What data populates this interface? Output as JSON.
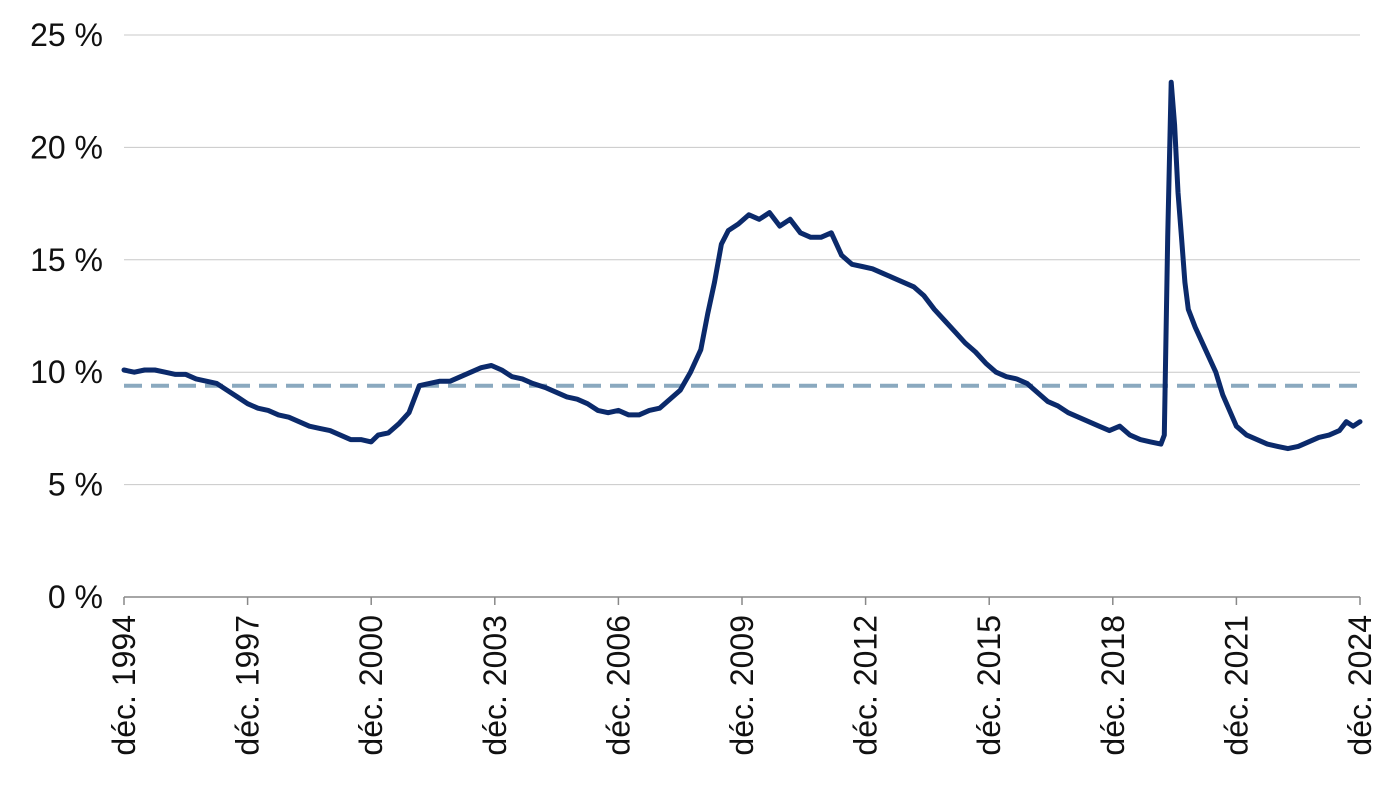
{
  "chart_data": {
    "type": "line",
    "title": "",
    "xlabel": "",
    "ylabel": "",
    "ylim": [
      0,
      25
    ],
    "y_ticks": [
      "0 %",
      "5 %",
      "10 %",
      "15 %",
      "20 %",
      "25 %"
    ],
    "x_ticks": [
      "déc. 1994",
      "déc. 1997",
      "déc. 2000",
      "déc. 2003",
      "déc. 2006",
      "déc. 2009",
      "déc. 2012",
      "déc. 2015",
      "déc. 2018",
      "déc. 2021",
      "déc. 2024"
    ],
    "x_range": [
      "1994-12",
      "2024-12"
    ],
    "grid": "horizontal",
    "legend": "none",
    "colors": {
      "series": "#0b2a6b",
      "reference": "#8aa9bf",
      "grid": "#c8c8c8",
      "axis": "#888888"
    },
    "reference_line": {
      "value": 9.4,
      "style": "dashed"
    },
    "series": [
      {
        "values": [
          [
            "1994-12",
            10.1
          ],
          [
            "1995-03",
            10.0
          ],
          [
            "1995-06",
            10.1
          ],
          [
            "1995-09",
            10.1
          ],
          [
            "1995-12",
            10.0
          ],
          [
            "1996-03",
            9.9
          ],
          [
            "1996-06",
            9.9
          ],
          [
            "1996-09",
            9.7
          ],
          [
            "1996-12",
            9.6
          ],
          [
            "1997-03",
            9.5
          ],
          [
            "1997-06",
            9.2
          ],
          [
            "1997-09",
            8.9
          ],
          [
            "1997-12",
            8.6
          ],
          [
            "1998-03",
            8.4
          ],
          [
            "1998-06",
            8.3
          ],
          [
            "1998-09",
            8.1
          ],
          [
            "1998-12",
            8.0
          ],
          [
            "1999-03",
            7.8
          ],
          [
            "1999-06",
            7.6
          ],
          [
            "1999-09",
            7.5
          ],
          [
            "1999-12",
            7.4
          ],
          [
            "2000-03",
            7.2
          ],
          [
            "2000-06",
            7.0
          ],
          [
            "2000-09",
            7.0
          ],
          [
            "2000-12",
            6.9
          ],
          [
            "2001-02",
            7.2
          ],
          [
            "2001-05",
            7.3
          ],
          [
            "2001-08",
            7.7
          ],
          [
            "2001-11",
            8.2
          ],
          [
            "2002-02",
            9.4
          ],
          [
            "2002-05",
            9.5
          ],
          [
            "2002-08",
            9.6
          ],
          [
            "2002-11",
            9.6
          ],
          [
            "2003-02",
            9.8
          ],
          [
            "2003-05",
            10.0
          ],
          [
            "2003-08",
            10.2
          ],
          [
            "2003-11",
            10.3
          ],
          [
            "2004-02",
            10.1
          ],
          [
            "2004-05",
            9.8
          ],
          [
            "2004-08",
            9.7
          ],
          [
            "2004-11",
            9.5
          ],
          [
            "2005-03",
            9.3
          ],
          [
            "2005-06",
            9.1
          ],
          [
            "2005-09",
            8.9
          ],
          [
            "2005-12",
            8.8
          ],
          [
            "2006-03",
            8.6
          ],
          [
            "2006-06",
            8.3
          ],
          [
            "2006-09",
            8.2
          ],
          [
            "2006-12",
            8.3
          ],
          [
            "2007-03",
            8.1
          ],
          [
            "2007-06",
            8.1
          ],
          [
            "2007-09",
            8.3
          ],
          [
            "2007-12",
            8.4
          ],
          [
            "2008-03",
            8.8
          ],
          [
            "2008-06",
            9.2
          ],
          [
            "2008-09",
            10.0
          ],
          [
            "2008-12",
            11.0
          ],
          [
            "2009-02",
            12.6
          ],
          [
            "2009-04",
            14.0
          ],
          [
            "2009-06",
            15.7
          ],
          [
            "2009-08",
            16.3
          ],
          [
            "2009-11",
            16.6
          ],
          [
            "2010-02",
            17.0
          ],
          [
            "2010-05",
            16.8
          ],
          [
            "2010-08",
            17.1
          ],
          [
            "2010-11",
            16.5
          ],
          [
            "2011-02",
            16.8
          ],
          [
            "2011-05",
            16.2
          ],
          [
            "2011-08",
            16.0
          ],
          [
            "2011-11",
            16.0
          ],
          [
            "2012-02",
            16.2
          ],
          [
            "2012-05",
            15.2
          ],
          [
            "2012-08",
            14.8
          ],
          [
            "2012-11",
            14.7
          ],
          [
            "2013-02",
            14.6
          ],
          [
            "2013-05",
            14.4
          ],
          [
            "2013-08",
            14.2
          ],
          [
            "2013-11",
            14.0
          ],
          [
            "2014-02",
            13.8
          ],
          [
            "2014-05",
            13.4
          ],
          [
            "2014-08",
            12.8
          ],
          [
            "2014-11",
            12.3
          ],
          [
            "2015-02",
            11.8
          ],
          [
            "2015-05",
            11.3
          ],
          [
            "2015-08",
            10.9
          ],
          [
            "2015-11",
            10.4
          ],
          [
            "2016-02",
            10.0
          ],
          [
            "2016-05",
            9.8
          ],
          [
            "2016-08",
            9.7
          ],
          [
            "2016-11",
            9.5
          ],
          [
            "2017-02",
            9.1
          ],
          [
            "2017-05",
            8.7
          ],
          [
            "2017-08",
            8.5
          ],
          [
            "2017-11",
            8.2
          ],
          [
            "2018-02",
            8.0
          ],
          [
            "2018-05",
            7.8
          ],
          [
            "2018-08",
            7.6
          ],
          [
            "2018-11",
            7.4
          ],
          [
            "2019-02",
            7.6
          ],
          [
            "2019-05",
            7.2
          ],
          [
            "2019-08",
            7.0
          ],
          [
            "2019-11",
            6.9
          ],
          [
            "2020-02",
            6.8
          ],
          [
            "2020-03",
            7.2
          ],
          [
            "2020-04",
            16.0
          ],
          [
            "2020-05",
            22.9
          ],
          [
            "2020-06",
            21.0
          ],
          [
            "2020-07",
            18.0
          ],
          [
            "2020-08",
            16.0
          ],
          [
            "2020-09",
            14.0
          ],
          [
            "2020-10",
            12.8
          ],
          [
            "2020-12",
            12.0
          ],
          [
            "2021-03",
            11.0
          ],
          [
            "2021-06",
            10.0
          ],
          [
            "2021-08",
            9.0
          ],
          [
            "2021-10",
            8.3
          ],
          [
            "2021-12",
            7.6
          ],
          [
            "2022-03",
            7.2
          ],
          [
            "2022-06",
            7.0
          ],
          [
            "2022-09",
            6.8
          ],
          [
            "2022-12",
            6.7
          ],
          [
            "2023-03",
            6.6
          ],
          [
            "2023-06",
            6.7
          ],
          [
            "2023-09",
            6.9
          ],
          [
            "2023-12",
            7.1
          ],
          [
            "2024-03",
            7.2
          ],
          [
            "2024-06",
            7.4
          ],
          [
            "2024-08",
            7.8
          ],
          [
            "2024-10",
            7.6
          ],
          [
            "2024-12",
            7.8
          ]
        ]
      }
    ]
  }
}
